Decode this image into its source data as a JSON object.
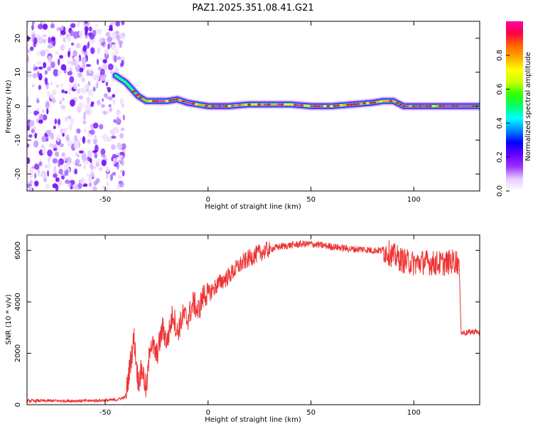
{
  "chart_data": [
    {
      "type": "heatmap",
      "title": "PAZ1.2025.351.08.41.G21",
      "xlabel": "Height of straight line (km)",
      "ylabel": "Frequency (Hz)",
      "xlim": [
        -88,
        132
      ],
      "ylim": [
        -25,
        25
      ],
      "xticks": [
        -50,
        0,
        50,
        100
      ],
      "yticks": [
        -20,
        -10,
        0,
        10,
        20
      ],
      "colorbar": {
        "label": "Normalized spectral amplitude",
        "range": [
          0,
          1
        ],
        "ticks": [
          0.0,
          0.2,
          0.4,
          0.6,
          0.8
        ],
        "colors": [
          "#ffffff",
          "#e6ccff",
          "#9933ff",
          "#6600ff",
          "#0000ff",
          "#0088ff",
          "#00ffff",
          "#00ff66",
          "#33ff00",
          "#ccff00",
          "#ffff00",
          "#ffaa00",
          "#ff6600",
          "#ff0044",
          "#ff00aa"
        ]
      },
      "noise_region_x": [
        -88,
        -40
      ],
      "ridge": {
        "x": [
          -45,
          -40,
          -37,
          -34,
          -30,
          -20,
          -15,
          -10,
          -5,
          0,
          10,
          20,
          30,
          40,
          50,
          60,
          70,
          80,
          85,
          90,
          95,
          100,
          110,
          120,
          125,
          132
        ],
        "y": [
          9,
          7,
          5,
          3,
          1.5,
          1.5,
          2,
          1,
          0.5,
          0,
          0,
          0.5,
          0.5,
          0.5,
          0,
          0,
          0.5,
          1,
          1.5,
          1.5,
          0,
          0,
          0,
          0,
          0,
          0
        ]
      }
    },
    {
      "type": "line",
      "xlabel": "Height of straight line (km)",
      "ylabel": "SNR (10 * v/v)",
      "xlim": [
        -88,
        132
      ],
      "ylim": [
        0,
        6600
      ],
      "xticks": [
        -50,
        0,
        50,
        100
      ],
      "yticks": [
        0,
        2000,
        4000,
        6000
      ],
      "color": "#ee3333",
      "x": [
        -88,
        -60,
        -45,
        -40,
        -38,
        -36,
        -34,
        -32,
        -30,
        -28,
        -25,
        -22,
        -20,
        -17,
        -15,
        -12,
        -10,
        -7,
        -5,
        -2,
        0,
        5,
        10,
        15,
        20,
        25,
        30,
        35,
        40,
        45,
        50,
        55,
        60,
        65,
        70,
        75,
        80,
        85,
        88,
        90,
        95,
        100,
        105,
        110,
        115,
        120,
        122,
        123,
        125,
        130,
        132
      ],
      "y": [
        150,
        150,
        180,
        300,
        1500,
        2600,
        900,
        1400,
        500,
        2500,
        1900,
        3000,
        2400,
        3600,
        2800,
        3500,
        3300,
        4000,
        3600,
        4300,
        4300,
        4700,
        5000,
        5400,
        5700,
        5900,
        6050,
        6150,
        6200,
        6250,
        6250,
        6200,
        6150,
        6100,
        6050,
        6050,
        6000,
        6000,
        5900,
        5800,
        5600,
        5500,
        5550,
        5500,
        5500,
        5600,
        5500,
        2800,
        2800,
        2850,
        2800
      ]
    }
  ]
}
